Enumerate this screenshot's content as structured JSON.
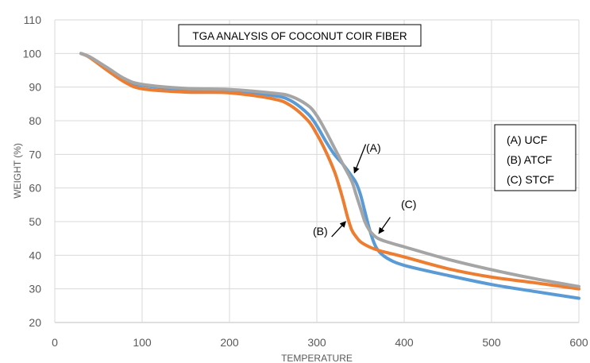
{
  "chart_data": {
    "type": "line",
    "title": "TGA ANALYSIS OF COCONUT COIR FIBER",
    "xlabel": "TEMPERATURE",
    "ylabel": "WEIGHT (%)",
    "xlim": [
      0,
      600
    ],
    "ylim": [
      20,
      110
    ],
    "xticks": [
      0,
      100,
      200,
      300,
      400,
      500,
      600
    ],
    "yticks": [
      20,
      30,
      40,
      50,
      60,
      70,
      80,
      90,
      100,
      110
    ],
    "grid": true,
    "legend_position": "right",
    "legend_entries": [
      "(A) UCF",
      "(B) ATCF",
      "(C)  STCF"
    ],
    "annotations": [
      "(A)",
      "(B)",
      "(C)"
    ],
    "series": [
      {
        "name": "(A) UCF",
        "color": "#5B9BD5",
        "x": [
          30,
          40,
          60,
          80,
          100,
          150,
          200,
          250,
          270,
          290,
          300,
          310,
          320,
          330,
          340,
          345,
          350,
          355,
          360,
          365,
          370,
          380,
          400,
          450,
          500,
          550,
          600
        ],
        "y": [
          100,
          99,
          95.5,
          92,
          90.5,
          89.3,
          89,
          87.5,
          86,
          82,
          78.5,
          74,
          70,
          67,
          63.5,
          61.5,
          58,
          53,
          48,
          44,
          41.5,
          39.2,
          37,
          34,
          31.3,
          29.2,
          27.2
        ]
      },
      {
        "name": "(B) ATCF",
        "color": "#ED7D31",
        "x": [
          30,
          40,
          60,
          80,
          100,
          150,
          200,
          250,
          270,
          290,
          300,
          310,
          320,
          325,
          330,
          335,
          340,
          345,
          350,
          360,
          370,
          380,
          400,
          450,
          500,
          550,
          600
        ],
        "y": [
          100,
          98.8,
          95,
          91.5,
          89.5,
          88.5,
          88.3,
          86.5,
          84.5,
          80,
          76,
          71,
          65,
          61,
          56.5,
          51.5,
          47.5,
          45.5,
          44,
          42.5,
          41.5,
          40.8,
          39.5,
          36,
          33.5,
          31.8,
          30
        ]
      },
      {
        "name": "(C)  STCF",
        "color": "#A5A5A5",
        "x": [
          30,
          40,
          60,
          80,
          100,
          150,
          200,
          250,
          270,
          290,
          300,
          310,
          320,
          330,
          340,
          345,
          350,
          355,
          360,
          365,
          370,
          380,
          400,
          450,
          500,
          550,
          600
        ],
        "y": [
          100,
          99,
          95.8,
          92.5,
          90.8,
          89.6,
          89.3,
          88.2,
          87.3,
          84.5,
          81.5,
          77,
          72,
          67,
          62,
          58,
          54,
          50,
          47.5,
          46,
          45,
          44,
          42.5,
          38.8,
          35.7,
          33,
          30.7
        ]
      }
    ],
    "arrows": [
      {
        "label": "(A)",
        "from": [
          356,
          73
        ],
        "to": [
          343,
          64.5
        ]
      },
      {
        "label": "(B)",
        "from": [
          317,
          45.5
        ],
        "to": [
          333,
          50
        ]
      },
      {
        "label": "(C)",
        "from": [
          384,
          51.3
        ],
        "to": [
          371,
          46.5
        ]
      }
    ]
  }
}
